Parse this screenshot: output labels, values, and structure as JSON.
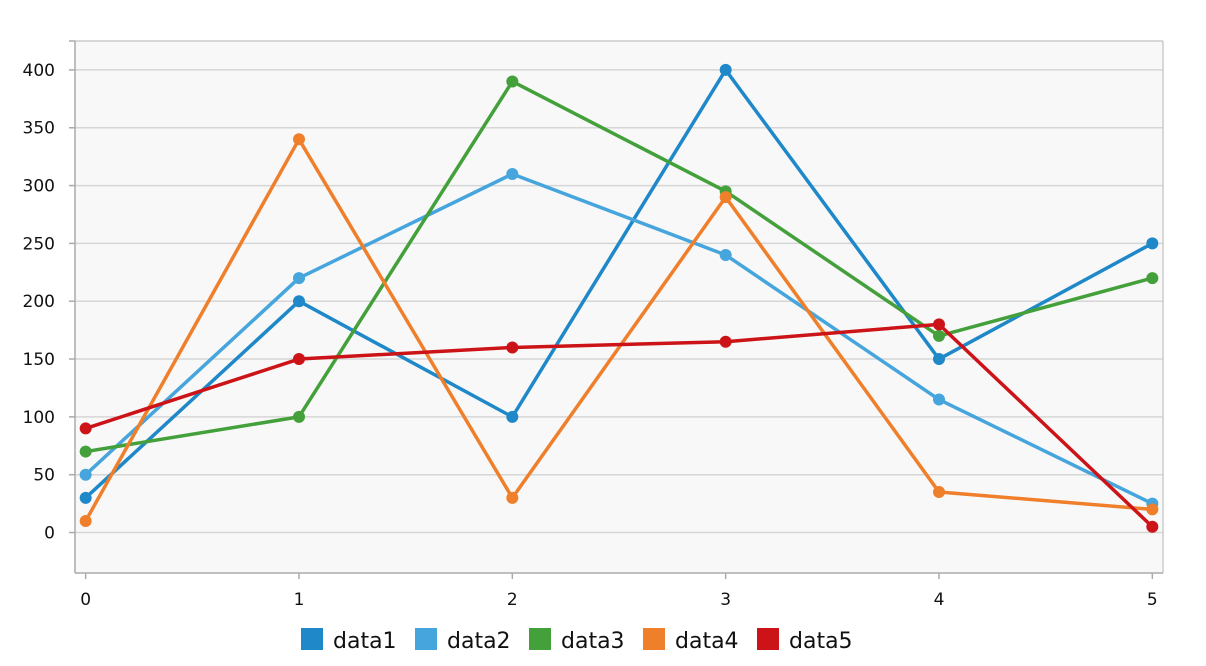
{
  "chart_data": {
    "type": "line",
    "title": "",
    "xlabel": "",
    "ylabel": "",
    "x": [
      0,
      1,
      2,
      3,
      4,
      5
    ],
    "x_ticks": [
      "0",
      "1",
      "2",
      "3",
      "4",
      "5"
    ],
    "y_ticks": [
      "0",
      "50",
      "100",
      "150",
      "200",
      "250",
      "300",
      "350",
      "400"
    ],
    "ylim": [
      -35,
      425
    ],
    "xlim": [
      -0.05,
      5.05
    ],
    "grid": "horizontal",
    "legend_position": "bottom",
    "series": [
      {
        "name": "data1",
        "color": "#1f88c9",
        "values": [
          30,
          200,
          100,
          400,
          150,
          250
        ]
      },
      {
        "name": "data2",
        "color": "#45a5dc",
        "values": [
          50,
          220,
          310,
          240,
          115,
          25
        ]
      },
      {
        "name": "data3",
        "color": "#44a03b",
        "values": [
          70,
          100,
          390,
          295,
          170,
          220
        ]
      },
      {
        "name": "data4",
        "color": "#ef7f2b",
        "values": [
          10,
          340,
          30,
          290,
          35,
          20
        ]
      },
      {
        "name": "data5",
        "color": "#cc1418",
        "values": [
          90,
          150,
          160,
          165,
          180,
          5
        ]
      }
    ]
  }
}
